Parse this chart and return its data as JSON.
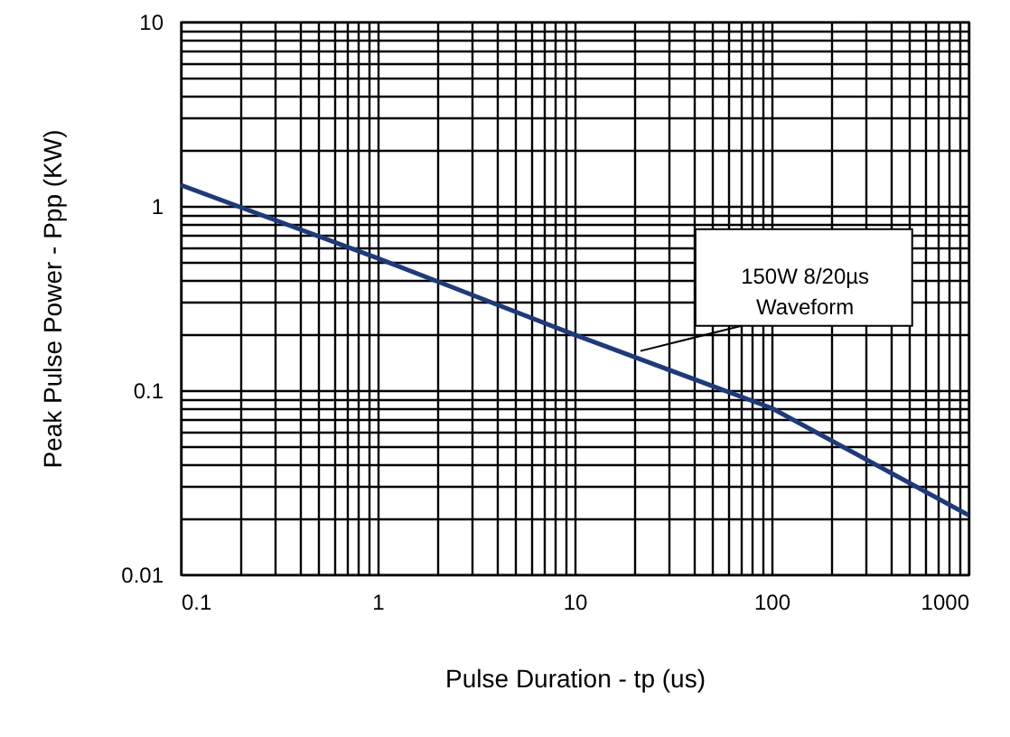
{
  "chart_data": {
    "type": "line",
    "xlabel": "Pulse Duration - tp (us)",
    "ylabel": "Peak Pulse Power - Ppp (KW)",
    "x": [
      0.1,
      1,
      10,
      100,
      1000
    ],
    "series": [
      {
        "color": "#1f3a7a",
        "values": [
          1.3,
          0.52,
          0.2,
          0.08,
          0.021
        ]
      }
    ],
    "xlim": [
      0.1,
      1000
    ],
    "ylim": [
      0.01,
      10
    ],
    "xticks": [
      0.1,
      1,
      10,
      100,
      1000
    ],
    "yticks": [
      0.01,
      0.1,
      1,
      10
    ],
    "log": "xy",
    "grid": true,
    "marker": "none",
    "line_style": "solid",
    "annotations": [
      {
        "text": "150W 8/20µs\nWaveform",
        "x": 20,
        "y": 0.16
      }
    ]
  }
}
